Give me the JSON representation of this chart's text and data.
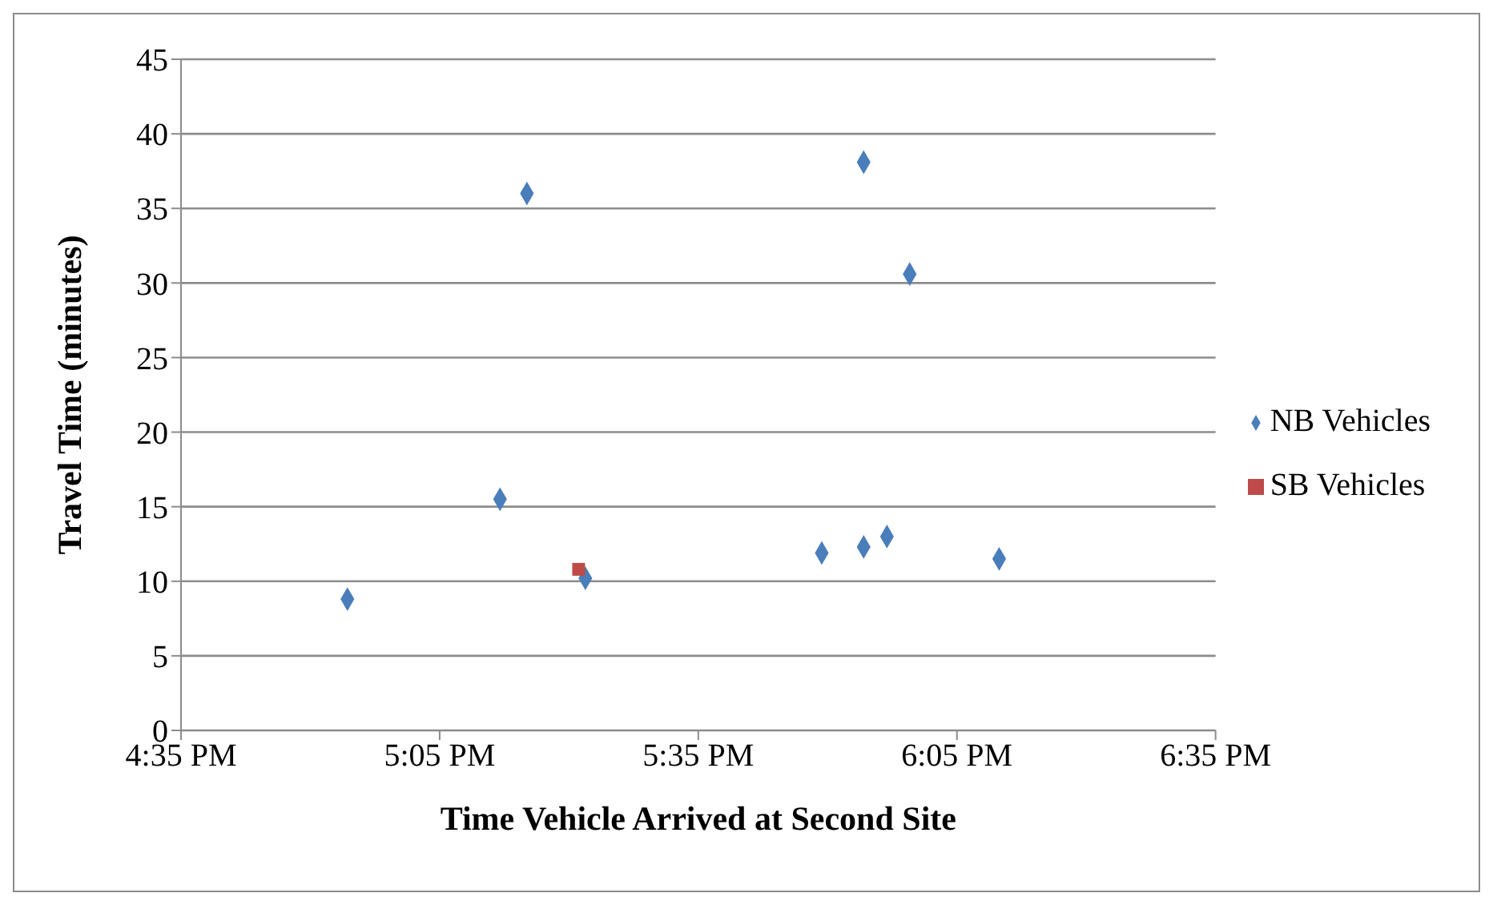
{
  "chart_data": {
    "type": "scatter",
    "xlabel": "Time Vehicle Arrived at Second Site",
    "ylabel": "Travel Time (minutes)",
    "xlim": [
      16.5833,
      18.5833
    ],
    "xticks": [
      {
        "value": 16.5833,
        "label": "4:35 PM"
      },
      {
        "value": 17.0833,
        "label": "5:05 PM"
      },
      {
        "value": 17.5833,
        "label": "5:35 PM"
      },
      {
        "value": 18.0833,
        "label": "6:05 PM"
      },
      {
        "value": 18.5833,
        "label": "6:35 PM"
      }
    ],
    "ylim": [
      0,
      45
    ],
    "yticks": [
      0,
      5,
      10,
      15,
      20,
      25,
      30,
      35,
      40,
      45
    ],
    "grid": "y",
    "legend": "right",
    "series": [
      {
        "name": "NB Vehicles",
        "color": "#4a7ebb",
        "marker": "diamond",
        "x": [
          16.905,
          17.2,
          17.252,
          17.365,
          17.822,
          17.903,
          17.903,
          17.948,
          17.992,
          18.165
        ],
        "values": [
          8.8,
          15.5,
          36.0,
          10.2,
          11.9,
          38.1,
          12.3,
          13.0,
          30.6,
          11.5
        ]
      },
      {
        "name": "SB Vehicles",
        "color": "#be4b48",
        "marker": "square",
        "x": [
          17.352
        ],
        "values": [
          10.8
        ]
      }
    ]
  }
}
